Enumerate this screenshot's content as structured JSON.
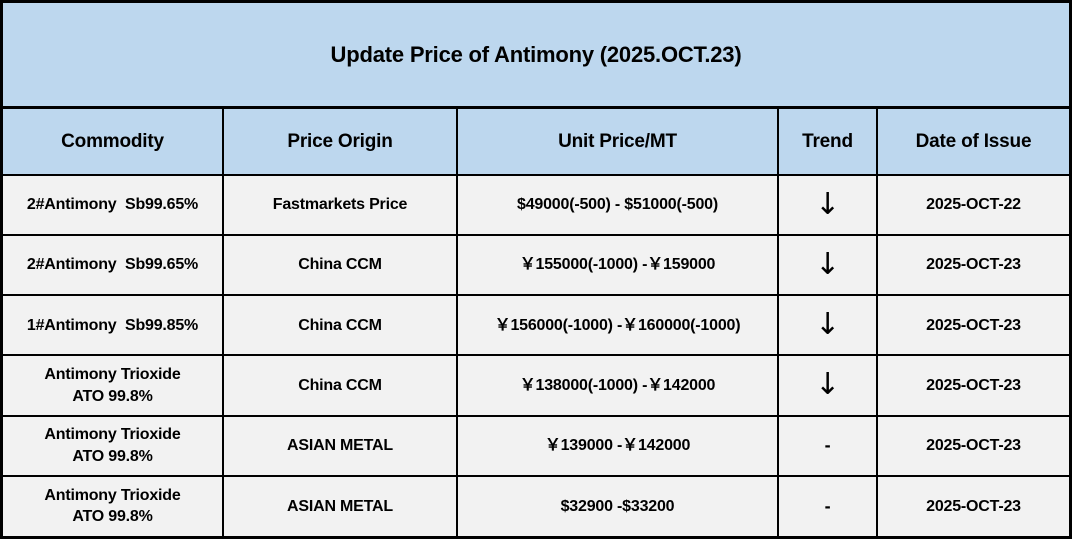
{
  "title": "Update Price of Antimony (2025.OCT.23)",
  "colors": {
    "header_bg": "#BDD7EE",
    "row_bg": "#F2F2F2",
    "border": "#000000",
    "text": "#000000"
  },
  "table": {
    "columns": [
      {
        "key": "commodity",
        "label": "Commodity"
      },
      {
        "key": "origin",
        "label": "Price Origin"
      },
      {
        "key": "unit_price",
        "label": "Unit Price/MT"
      },
      {
        "key": "trend",
        "label": "Trend"
      },
      {
        "key": "date_of_issue",
        "label": "Date of Issue"
      }
    ],
    "rows": [
      {
        "commodity_lines": [
          "2#Antimony  Sb99.65%"
        ],
        "origin": "Fastmarkets Price",
        "unit_price": "$49000(-500) - $51000(-500)",
        "trend": "↓",
        "trend_meaning": "down",
        "date_of_issue": "2025-OCT-22"
      },
      {
        "commodity_lines": [
          "2#Antimony  Sb99.65%"
        ],
        "origin": "China CCM",
        "unit_price": "￥155000(-1000) -￥159000",
        "trend": "↓",
        "trend_meaning": "down",
        "date_of_issue": "2025-OCT-23"
      },
      {
        "commodity_lines": [
          "1#Antimony  Sb99.85%"
        ],
        "origin": "China CCM",
        "unit_price": "￥156000(-1000) -￥160000(-1000)",
        "trend": "↓",
        "trend_meaning": "down",
        "date_of_issue": "2025-OCT-23"
      },
      {
        "commodity_lines": [
          "Antimony Trioxide",
          "ATO 99.8%"
        ],
        "origin": "China CCM",
        "unit_price": "￥138000(-1000) -￥142000",
        "trend": "↓",
        "trend_meaning": "down",
        "date_of_issue": "2025-OCT-23"
      },
      {
        "commodity_lines": [
          "Antimony Trioxide",
          "ATO 99.8%"
        ],
        "origin": "ASIAN METAL",
        "unit_price": "￥139000 -￥142000",
        "trend": "-",
        "trend_meaning": "flat",
        "date_of_issue": "2025-OCT-23"
      },
      {
        "commodity_lines": [
          "Antimony Trioxide",
          "ATO 99.8%"
        ],
        "origin": "ASIAN METAL",
        "unit_price": "$32900 -$33200",
        "trend": "-",
        "trend_meaning": "flat",
        "date_of_issue": "2025-OCT-23"
      }
    ]
  }
}
